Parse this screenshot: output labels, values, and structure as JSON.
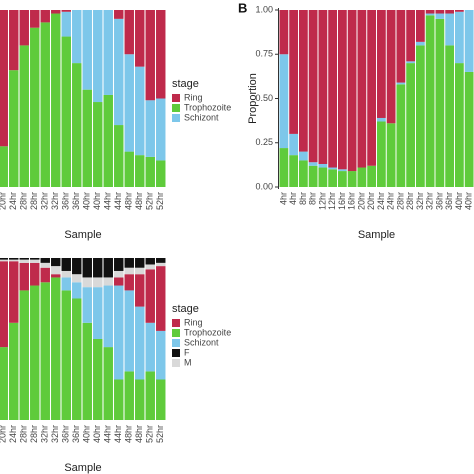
{
  "chart_data": [
    {
      "type": "stacked_bar",
      "x_label": "Sample",
      "legend_title": "stage",
      "legend": "right",
      "ylim": [
        0,
        1
      ],
      "categories": [
        "20hr",
        "24hr",
        "28hr",
        "28hr",
        "32hr",
        "32hr",
        "36hr",
        "36hr",
        "40hr",
        "40hr",
        "44hr",
        "44hr",
        "48hr",
        "48hr",
        "52hr",
        "52hr"
      ],
      "series": [
        {
          "name": "Ring",
          "color": "#bf2a4b",
          "values": [
            0.77,
            0.34,
            0.2,
            0.1,
            0.07,
            0.02,
            0.01,
            0,
            0,
            0,
            0,
            0.05,
            0.25,
            0.32,
            0.51,
            0.5
          ]
        },
        {
          "name": "Trophozoite",
          "color": "#5fcb3b",
          "values": [
            0.23,
            0.66,
            0.8,
            0.9,
            0.93,
            0.98,
            0.85,
            0.7,
            0.55,
            0.48,
            0.52,
            0.35,
            0.2,
            0.18,
            0.17,
            0.15
          ]
        },
        {
          "name": "Schizont",
          "color": "#7dc7ea",
          "values": [
            0,
            0,
            0,
            0,
            0,
            0,
            0.14,
            0.3,
            0.45,
            0.52,
            0.48,
            0.6,
            0.55,
            0.5,
            0.32,
            0.35
          ]
        }
      ]
    },
    {
      "type": "stacked_bar",
      "panel_label": "B",
      "y_label": "Proportion",
      "x_label": "Sample",
      "ylim": [
        0,
        1
      ],
      "yticks": [
        {
          "value": 0,
          "label": "0.00"
        },
        {
          "value": 0.25,
          "label": "0.25"
        },
        {
          "value": 0.5,
          "label": "0.50"
        },
        {
          "value": 0.75,
          "label": "0.75"
        },
        {
          "value": 1,
          "label": "1.00"
        }
      ],
      "categories": [
        "4hr",
        "4hr",
        "8hr",
        "8hr",
        "12hr",
        "12hr",
        "16hr",
        "16hr",
        "20hr",
        "20hr",
        "24hr",
        "24hr",
        "28hr",
        "28hr",
        "32hr",
        "32hr",
        "36hr",
        "36hr",
        "40hr",
        "40hr"
      ],
      "series": [
        {
          "name": "Ring",
          "color": "#bf2a4b",
          "values": [
            0.25,
            0.7,
            0.8,
            0.86,
            0.87,
            0.89,
            0.9,
            0.91,
            0.89,
            0.88,
            0.61,
            0.64,
            0.41,
            0.29,
            0.18,
            0.02,
            0.02,
            0.02,
            0.01,
            0
          ]
        },
        {
          "name": "Trophozoite",
          "color": "#5fcb3b",
          "values": [
            0.22,
            0.18,
            0.15,
            0.12,
            0.11,
            0.1,
            0.09,
            0.09,
            0.11,
            0.12,
            0.37,
            0.36,
            0.58,
            0.7,
            0.8,
            0.97,
            0.95,
            0.8,
            0.7,
            0.65
          ]
        },
        {
          "name": "Schizont",
          "color": "#7dc7ea",
          "values": [
            0.53,
            0.12,
            0.05,
            0.02,
            0.02,
            0.01,
            0.01,
            0,
            0,
            0,
            0.02,
            0,
            0.01,
            0.01,
            0.02,
            0.01,
            0.03,
            0.18,
            0.29,
            0.35
          ]
        }
      ]
    },
    {
      "type": "stacked_bar",
      "x_label": "Sample",
      "legend_title": "stage",
      "legend": "right",
      "ylim": [
        0,
        1
      ],
      "categories": [
        "20hr",
        "24hr",
        "28hr",
        "28hr",
        "32hr",
        "32hr",
        "36hr",
        "36hr",
        "40hr",
        "40hr",
        "44hr",
        "44hr",
        "48hr",
        "48hr",
        "52hr",
        "52hr"
      ],
      "series": [
        {
          "name": "Ring",
          "color": "#bf2a4b",
          "values": [
            0.53,
            0.38,
            0.17,
            0.14,
            0.09,
            0.02,
            0,
            0,
            0,
            0,
            0,
            0.05,
            0.1,
            0.2,
            0.33,
            0.4
          ]
        },
        {
          "name": "Trophozoite",
          "color": "#5fcb3b",
          "values": [
            0.45,
            0.6,
            0.8,
            0.83,
            0.85,
            0.88,
            0.8,
            0.75,
            0.6,
            0.5,
            0.45,
            0.25,
            0.3,
            0.25,
            0.3,
            0.25
          ]
        },
        {
          "name": "Schizont",
          "color": "#7dc7ea",
          "values": [
            0,
            0,
            0,
            0,
            0,
            0,
            0.08,
            0.1,
            0.22,
            0.32,
            0.38,
            0.58,
            0.5,
            0.45,
            0.3,
            0.3
          ]
        },
        {
          "name": "F",
          "color": "#111111",
          "values": [
            0.01,
            0.01,
            0.01,
            0.01,
            0.03,
            0.05,
            0.08,
            0.1,
            0.12,
            0.12,
            0.12,
            0.08,
            0.06,
            0.06,
            0.04,
            0.03
          ]
        },
        {
          "name": "M",
          "color": "#d9d9d9",
          "values": [
            0.01,
            0.01,
            0.02,
            0.02,
            0.03,
            0.05,
            0.04,
            0.05,
            0.06,
            0.06,
            0.05,
            0.04,
            0.04,
            0.04,
            0.03,
            0.02
          ]
        }
      ]
    }
  ]
}
